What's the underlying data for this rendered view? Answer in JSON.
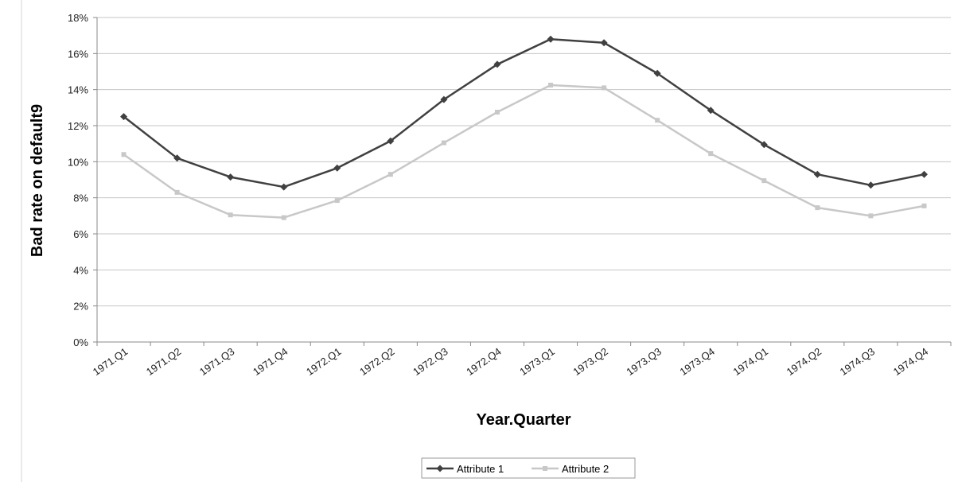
{
  "chart_data": {
    "type": "line",
    "xlabel": "Year.Quarter",
    "ylabel": "Bad rate on default9",
    "categories": [
      "1971.Q1",
      "1971.Q2",
      "1971.Q3",
      "1971.Q4",
      "1972.Q1",
      "1972.Q2",
      "1972.Q3",
      "1972.Q4",
      "1973.Q1",
      "1973.Q2",
      "1973.Q3",
      "1973.Q4",
      "1974.Q1",
      "1974.Q2",
      "1974.Q3",
      "1974.Q4"
    ],
    "ylim": [
      0,
      18
    ],
    "yticks": [
      "0%",
      "2%",
      "4%",
      "6%",
      "8%",
      "10%",
      "12%",
      "14%",
      "16%",
      "18%"
    ],
    "grid": true,
    "legend": "bottom-center",
    "series": [
      {
        "name": "Attribute 1",
        "color": "#404040",
        "marker": "diamond",
        "values": [
          12.5,
          10.2,
          9.15,
          8.6,
          9.65,
          11.15,
          13.45,
          15.4,
          16.8,
          16.6,
          14.9,
          12.85,
          10.95,
          9.3,
          8.7,
          9.3
        ]
      },
      {
        "name": "Attribute 2",
        "color": "#c8c8c8",
        "marker": "square",
        "values": [
          10.4,
          8.3,
          7.05,
          6.9,
          7.85,
          9.3,
          11.05,
          12.75,
          14.25,
          14.1,
          12.3,
          10.45,
          8.95,
          7.45,
          7.0,
          7.55
        ]
      }
    ]
  }
}
